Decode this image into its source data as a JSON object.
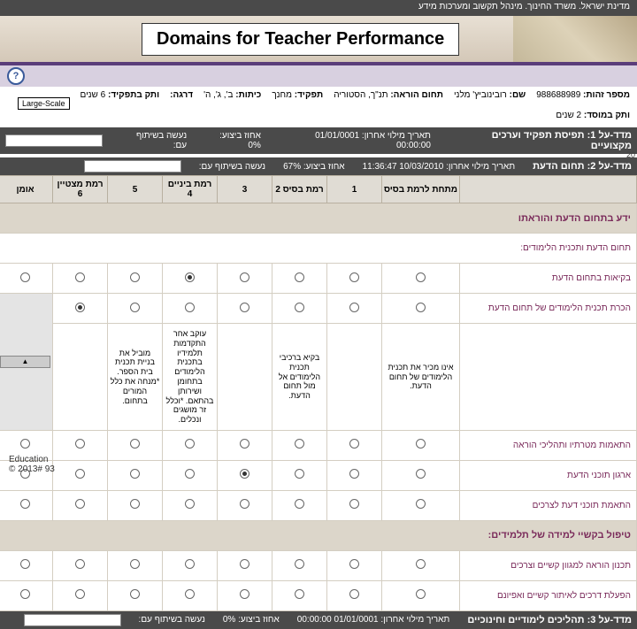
{
  "topbar": {
    "text": "מדינת ישראל. משרד החינוך. מינהל תקשוב ומערכות מידע"
  },
  "banner": {
    "title": "Domains for Teacher Performance"
  },
  "details": {
    "items": [
      {
        "label": "מספר זהות:",
        "value": "988688989"
      },
      {
        "label": "שם:",
        "value": "רובינוביץ' מלני"
      },
      {
        "label": "תחום הוראה:",
        "value": "תנ\"ך, הסטוריה"
      },
      {
        "label": "תפקיד:",
        "value": "מחנך"
      },
      {
        "label": "כיתות:",
        "value": "ב', ג', ה'"
      },
      {
        "label": "דרגה:",
        "value": ""
      },
      {
        "label": "ותק בתפקיד:",
        "value": "6 שנים"
      },
      {
        "label": "ותק במוסד:",
        "value": "2 שנים"
      }
    ]
  },
  "scale_badge": "Large-Scale",
  "madad1": {
    "title": "מדד-על 1: תפיסת תפקיד וערכים מקצועיים",
    "last_fill_label": "תאריך מילוי אחרון:",
    "last_fill": "01/01/0001 00:00:00",
    "pct_label": "אחוז ביצוע:",
    "pct": "0%",
    "shared_label": "נעשה בשיתוף עם:"
  },
  "madad2": {
    "title": "מדד-על 2: תחום הדעת",
    "last_fill_label": "תאריך מילוי אחרון:",
    "last_fill": "10/03/2010 11:36:47",
    "pct_label": "אחוז ביצוע:",
    "pct": "67%",
    "shared_label": "נעשה בשיתוף עם:"
  },
  "madad3": {
    "title": "מדד-על 3: תהליכים לימודיים וחינוכיים",
    "last_fill_label": "תאריך מילוי אחרון:",
    "last_fill": "01/01/0001 00:00:00",
    "pct_label": "אחוז ביצוע:",
    "pct": "0%",
    "shared_label": "נעשה בשיתוף עם:"
  },
  "headers": {
    "below": "מתחת לרמת בסיס",
    "s1": "1",
    "s2": "רמת בסיס\n2",
    "s3": "3",
    "s4": "רמת ביניים\n4",
    "s5": "5",
    "s6": "רמת מצטיין\n6",
    "artist": "אומן"
  },
  "section_a": {
    "head": "ידע בתחום הדעת והוראתו",
    "sub": "תחום הדעת ותכנית הלימודים:",
    "rows": [
      "בקיאות בתחום הדעת",
      "הכרת תכנית הלימודים של תחום הדעת"
    ]
  },
  "desc_cells": {
    "c0": "אינו מכיר את תכנית הלימודים של תחום הדעת.",
    "c1": "בקיא ברכיבי תכנית הלימודים אל מול תחום הדעת.",
    "c2": "עוקב אחר התקדמות תלמידיו בתכנית הלימודים בתחומן ושירותן בהתאם. *וכלל זר מושגים ונכלים.",
    "c3": "מוביל את בניית תכנית בית הספר. *מנחה את כלל המורים בתחום."
  },
  "section_b": {
    "rows": [
      "התאמות מטרתיו ותהליכי הוראה",
      "ארגון תוכני הדעת",
      "התאמת תוכני דעת לצרכים"
    ]
  },
  "section_c": {
    "head": "טיפול בקשיי למידה של תלמידים:",
    "rows": [
      "תכנון הוראה למגוון קשיים וצרכים",
      "הפעלת דרכים לאיתור קשיים ואפיונם"
    ]
  },
  "side_counter": "20",
  "footer": {
    "line1": "Education",
    "line2": "© 2013# 93"
  }
}
